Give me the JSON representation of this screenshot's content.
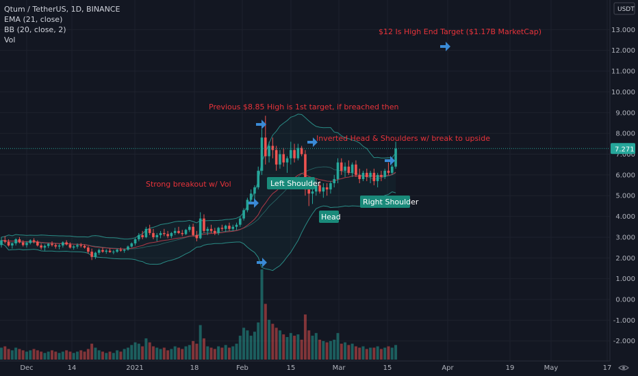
{
  "header": {
    "symbol": "Qtum / TetherUS, 1D, BINANCE",
    "indicators": [
      "EMA (21, close)",
      "BB (20, close, 2)",
      "Vol"
    ]
  },
  "currency_badge": "USDT",
  "price_tag": "7.271",
  "colors": {
    "background": "#131722",
    "up": "#26a69a",
    "down": "#ef5350",
    "bb": "#2a8c86",
    "ema": "#b03a48",
    "annotation": "#e8333a",
    "arrow": "#3a8ad6",
    "label_bg": "#1a8a7a"
  },
  "annotations": {
    "target": "$12 Is High End Target ($1.17B MarketCap)",
    "previous_high": "Previous $8.85 High is 1st target, if breached then",
    "pattern": "Inverted Head & Shoulders w/ break to upside",
    "breakout": "Strong breakout w/ Vol"
  },
  "pattern_labels": {
    "left_shoulder": "Left Shoulder",
    "head": "Head",
    "right_shoulder": "Right Shoulder"
  },
  "icons": [
    "arrow-right-icon",
    "eye-icon"
  ],
  "chart_data": {
    "type": "candlestick",
    "ylim": [
      -2.7,
      13.9
    ],
    "y_ticks": [
      "13.000",
      "12.000",
      "11.000",
      "10.000",
      "9.000",
      "8.000",
      "7.000",
      "6.000",
      "5.000",
      "4.000",
      "3.000",
      "2.000",
      "1.000",
      "0.000",
      "-1.000",
      "-2.000"
    ],
    "x_ticks": [
      "Dec",
      "14",
      "2021",
      "18",
      "Feb",
      "15",
      "Mar",
      "15",
      "Apr",
      "19",
      "May",
      "17"
    ],
    "last_price": 7.271,
    "ohlc": [
      [
        2.62,
        3.0,
        2.5,
        2.85
      ],
      [
        2.85,
        3.05,
        2.7,
        2.78
      ],
      [
        2.78,
        2.9,
        2.55,
        2.6
      ],
      [
        2.6,
        2.75,
        2.45,
        2.7
      ],
      [
        2.7,
        2.95,
        2.6,
        2.9
      ],
      [
        2.9,
        3.0,
        2.7,
        2.75
      ],
      [
        2.75,
        2.85,
        2.55,
        2.62
      ],
      [
        2.62,
        2.8,
        2.5,
        2.72
      ],
      [
        2.72,
        2.9,
        2.65,
        2.85
      ],
      [
        2.85,
        2.95,
        2.7,
        2.78
      ],
      [
        2.78,
        2.85,
        2.55,
        2.6
      ],
      [
        2.6,
        2.7,
        2.4,
        2.5
      ],
      [
        2.5,
        2.65,
        2.35,
        2.58
      ],
      [
        2.58,
        2.72,
        2.48,
        2.68
      ],
      [
        2.68,
        2.8,
        2.55,
        2.62
      ],
      [
        2.62,
        2.7,
        2.45,
        2.55
      ],
      [
        2.55,
        2.68,
        2.42,
        2.6
      ],
      [
        2.6,
        2.8,
        2.5,
        2.75
      ],
      [
        2.75,
        2.85,
        2.6,
        2.65
      ],
      [
        2.65,
        2.75,
        2.45,
        2.5
      ],
      [
        2.5,
        2.62,
        2.4,
        2.55
      ],
      [
        2.55,
        2.7,
        2.45,
        2.62
      ],
      [
        2.62,
        2.72,
        2.5,
        2.58
      ],
      [
        2.58,
        2.65,
        2.45,
        2.5
      ],
      [
        2.5,
        2.58,
        2.2,
        2.3
      ],
      [
        2.3,
        2.45,
        1.9,
        2.05
      ],
      [
        2.05,
        2.3,
        1.95,
        2.25
      ],
      [
        2.25,
        2.45,
        2.15,
        2.38
      ],
      [
        2.38,
        2.5,
        2.25,
        2.3
      ],
      [
        2.3,
        2.42,
        2.2,
        2.35
      ],
      [
        2.35,
        2.45,
        2.25,
        2.28
      ],
      [
        2.28,
        2.38,
        2.18,
        2.3
      ],
      [
        2.3,
        2.45,
        2.25,
        2.4
      ],
      [
        2.4,
        2.5,
        2.3,
        2.35
      ],
      [
        2.35,
        2.45,
        2.25,
        2.4
      ],
      [
        2.4,
        2.6,
        2.35,
        2.55
      ],
      [
        2.55,
        2.75,
        2.5,
        2.7
      ],
      [
        2.7,
        2.95,
        2.6,
        2.9
      ],
      [
        2.9,
        3.2,
        2.8,
        3.1
      ],
      [
        3.1,
        3.3,
        2.9,
        3.0
      ],
      [
        3.0,
        3.5,
        2.95,
        3.4
      ],
      [
        3.4,
        3.6,
        3.1,
        3.2
      ],
      [
        3.2,
        3.4,
        2.9,
        3.0
      ],
      [
        3.0,
        3.2,
        2.8,
        3.1
      ],
      [
        3.1,
        3.3,
        2.95,
        3.2
      ],
      [
        3.2,
        3.4,
        3.05,
        3.15
      ],
      [
        3.15,
        3.3,
        2.95,
        3.05
      ],
      [
        3.05,
        3.25,
        2.95,
        3.2
      ],
      [
        3.2,
        3.45,
        3.1,
        3.3
      ],
      [
        3.3,
        3.5,
        3.15,
        3.2
      ],
      [
        3.2,
        3.35,
        3.05,
        3.15
      ],
      [
        3.15,
        3.4,
        3.1,
        3.35
      ],
      [
        3.35,
        3.6,
        3.25,
        3.5
      ],
      [
        3.5,
        3.65,
        3.05,
        3.1
      ],
      [
        3.1,
        3.3,
        2.8,
        2.95
      ],
      [
        2.95,
        4.2,
        2.9,
        3.9
      ],
      [
        3.9,
        4.1,
        3.2,
        3.3
      ],
      [
        3.3,
        3.5,
        3.1,
        3.4
      ],
      [
        3.4,
        3.6,
        3.2,
        3.3
      ],
      [
        3.3,
        3.45,
        3.1,
        3.2
      ],
      [
        3.2,
        3.5,
        3.1,
        3.45
      ],
      [
        3.45,
        3.6,
        3.3,
        3.4
      ],
      [
        3.4,
        3.6,
        3.25,
        3.55
      ],
      [
        3.55,
        3.7,
        3.3,
        3.4
      ],
      [
        3.4,
        3.6,
        3.3,
        3.5
      ],
      [
        3.5,
        3.7,
        3.35,
        3.6
      ],
      [
        3.6,
        4.0,
        3.5,
        3.9
      ],
      [
        3.9,
        4.4,
        3.8,
        4.3
      ],
      [
        4.3,
        4.9,
        4.2,
        4.8
      ],
      [
        4.8,
        5.3,
        4.6,
        5.1
      ],
      [
        5.1,
        5.5,
        4.8,
        5.4
      ],
      [
        5.4,
        6.4,
        5.3,
        6.2
      ],
      [
        6.2,
        8.2,
        6.0,
        7.8
      ],
      [
        7.8,
        8.85,
        6.5,
        6.9
      ],
      [
        6.9,
        7.6,
        6.6,
        7.4
      ],
      [
        7.4,
        7.8,
        6.8,
        7.2
      ],
      [
        7.2,
        7.4,
        6.2,
        6.5
      ],
      [
        6.5,
        7.2,
        6.3,
        7.0
      ],
      [
        7.0,
        7.3,
        6.4,
        6.6
      ],
      [
        6.6,
        6.9,
        6.1,
        6.8
      ],
      [
        6.8,
        7.6,
        6.5,
        7.2
      ],
      [
        7.2,
        7.5,
        6.6,
        6.8
      ],
      [
        6.8,
        7.5,
        6.7,
        7.3
      ],
      [
        7.3,
        7.4,
        6.9,
        7.0
      ],
      [
        7.0,
        7.2,
        5.0,
        5.3
      ],
      [
        5.3,
        5.6,
        4.5,
        5.1
      ],
      [
        5.1,
        5.4,
        4.6,
        5.2
      ],
      [
        5.2,
        5.8,
        5.0,
        5.5
      ],
      [
        5.5,
        5.7,
        5.1,
        5.2
      ],
      [
        5.2,
        5.6,
        4.9,
        5.4
      ],
      [
        5.4,
        5.6,
        5.0,
        5.3
      ],
      [
        5.3,
        5.7,
        5.1,
        5.6
      ],
      [
        5.6,
        6.0,
        5.4,
        5.8
      ],
      [
        5.8,
        6.8,
        5.6,
        6.6
      ],
      [
        6.6,
        6.8,
        6.0,
        6.2
      ],
      [
        6.2,
        6.6,
        5.9,
        6.4
      ],
      [
        6.4,
        6.7,
        6.0,
        6.1
      ],
      [
        6.1,
        6.6,
        5.9,
        6.5
      ],
      [
        6.5,
        6.7,
        5.9,
        6.0
      ],
      [
        6.0,
        6.3,
        5.6,
        5.8
      ],
      [
        5.8,
        6.2,
        5.7,
        6.1
      ],
      [
        6.1,
        6.3,
        5.7,
        5.9
      ],
      [
        5.9,
        6.2,
        5.6,
        6.1
      ],
      [
        6.1,
        6.3,
        5.5,
        5.7
      ],
      [
        5.7,
        6.1,
        5.4,
        6.0
      ],
      [
        6.0,
        6.2,
        5.7,
        5.9
      ],
      [
        5.9,
        6.3,
        5.8,
        6.2
      ],
      [
        6.2,
        6.6,
        6.0,
        6.1
      ],
      [
        6.1,
        6.5,
        6.0,
        6.4
      ],
      [
        6.4,
        7.6,
        6.3,
        7.27
      ]
    ],
    "volume": [
      0.9,
      1.0,
      0.8,
      0.7,
      0.9,
      0.8,
      0.7,
      0.6,
      0.7,
      0.8,
      0.7,
      0.6,
      0.5,
      0.6,
      0.7,
      0.6,
      0.5,
      0.6,
      0.7,
      0.6,
      0.5,
      0.6,
      0.7,
      0.6,
      0.8,
      1.2,
      0.9,
      0.7,
      0.6,
      0.5,
      0.6,
      0.5,
      0.7,
      0.6,
      0.8,
      0.9,
      1.1,
      1.3,
      1.2,
      1.0,
      1.6,
      1.3,
      1.0,
      0.9,
      0.8,
      0.9,
      0.7,
      0.8,
      1.0,
      0.9,
      0.8,
      1.0,
      1.1,
      1.4,
      1.2,
      2.6,
      1.6,
      1.0,
      0.9,
      0.8,
      1.0,
      0.9,
      1.1,
      0.9,
      1.0,
      1.2,
      1.8,
      2.4,
      2.2,
      1.8,
      2.1,
      2.8,
      6.8,
      4.2,
      3.0,
      2.7,
      2.4,
      2.2,
      1.9,
      1.7,
      2.0,
      1.8,
      1.9,
      1.5,
      3.4,
      2.2,
      1.8,
      2.0,
      1.5,
      1.4,
      1.3,
      1.4,
      1.5,
      2.0,
      1.2,
      1.3,
      1.1,
      1.2,
      1.0,
      0.9,
      1.0,
      0.8,
      0.9,
      0.9,
      1.0,
      0.8,
      0.9,
      1.0,
      0.9,
      1.1
    ]
  }
}
